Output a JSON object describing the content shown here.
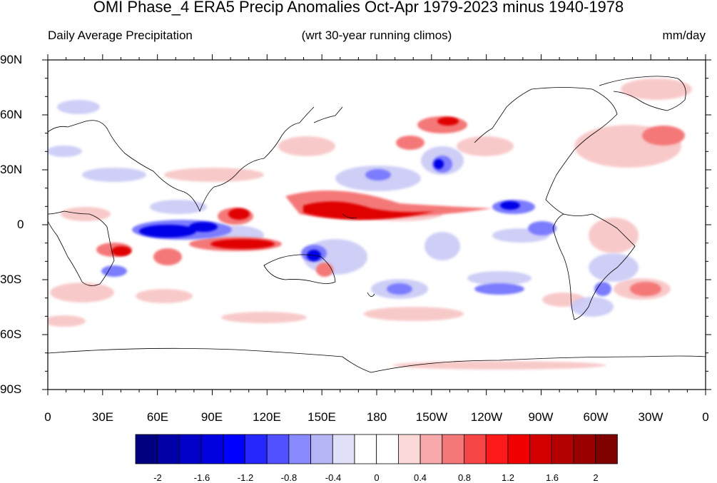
{
  "title": "OMI Phase_4 ERA5 Precip Anomalies Oct-Apr 1979-2023 minus 1940-1978",
  "subtitle_left": "Daily Average Precipitation",
  "subtitle_center": "(wrt 30-year running climos)",
  "subtitle_right": "mm/day",
  "lat_labels": [
    "90N",
    "60N",
    "30N",
    "0",
    "30S",
    "60S",
    "90S"
  ],
  "lon_labels": [
    "0",
    "30E",
    "60E",
    "90E",
    "120E",
    "150E",
    "180",
    "150W",
    "120W",
    "90W",
    "60W",
    "30W",
    "0"
  ],
  "colorbar": {
    "labels": [
      "-2",
      "-1.6",
      "-1.2",
      "-0.8",
      "-0.4",
      "0",
      "0.4",
      "0.8",
      "1.2",
      "1.6",
      "2"
    ],
    "colors": [
      "#000080",
      "#0000a6",
      "#0000c8",
      "#0000e0",
      "#0000ff",
      "#2626ff",
      "#5050ff",
      "#8a8aff",
      "#b5b5f6",
      "#e0e0f8",
      "#ffffff",
      "#ffffff",
      "#fbd9d9",
      "#f8aaaa",
      "#f47878",
      "#f54545",
      "#ff1a1a",
      "#f00000",
      "#d40000",
      "#b40000",
      "#9a0000",
      "#800000"
    ]
  },
  "colors": {
    "strong_negative": "#0000ff",
    "weak_negative": "#b5b5f6",
    "strong_positive": "#e00000",
    "weak_positive": "#f8aaaa"
  }
}
